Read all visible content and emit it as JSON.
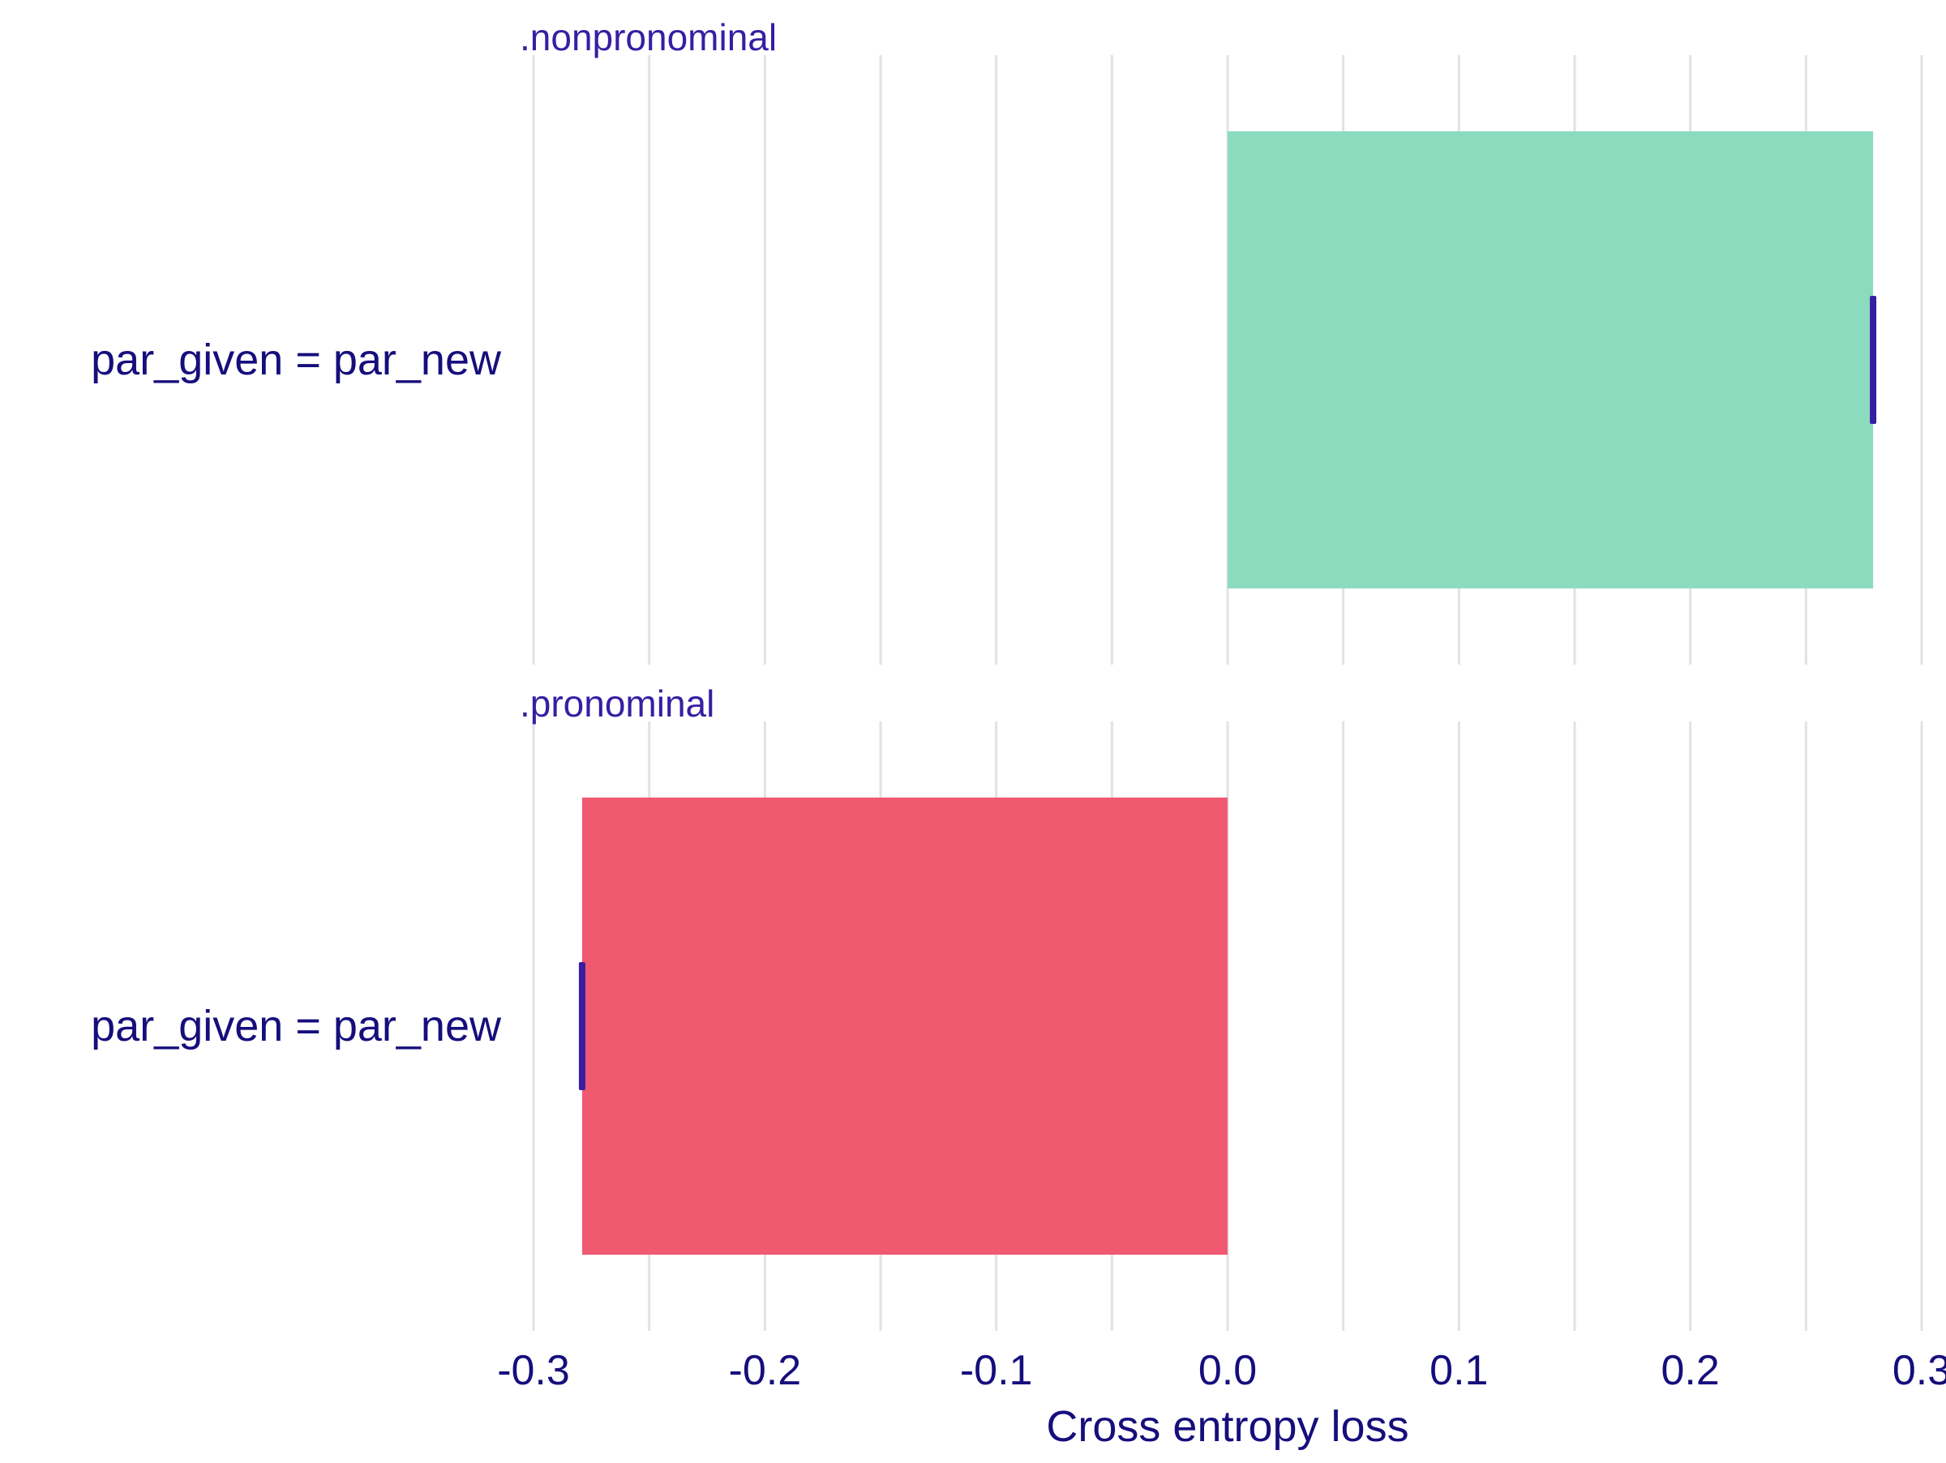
{
  "chart_data": {
    "type": "bar",
    "orientation": "horizontal",
    "xlabel": "Cross entropy loss",
    "xlim": [
      -0.3,
      0.3
    ],
    "x_ticks": [
      "-0.3",
      "-0.2",
      "-0.1",
      "0.0",
      "0.1",
      "0.2",
      "0.3"
    ],
    "grid": "vertical",
    "panels": [
      {
        "facet_label": ".nonpronominal",
        "categories": [
          "par_given = par_new"
        ],
        "values": [
          0.279
        ],
        "boxplot_summary": [
          0.279
        ],
        "bar_color": "#8BDCBE"
      },
      {
        "facet_label": ".pronominal",
        "categories": [
          "par_given = par_new"
        ],
        "values": [
          -0.279
        ],
        "boxplot_summary": [
          -0.279
        ],
        "bar_color": "#F05A71"
      }
    ],
    "colors": {
      "positive": "#8BDCBE",
      "negative": "#F05A71",
      "marker": "#371EA3",
      "text": "#160E7C",
      "facet_text": "#371EA3",
      "grid": "#E2E2E2"
    }
  }
}
